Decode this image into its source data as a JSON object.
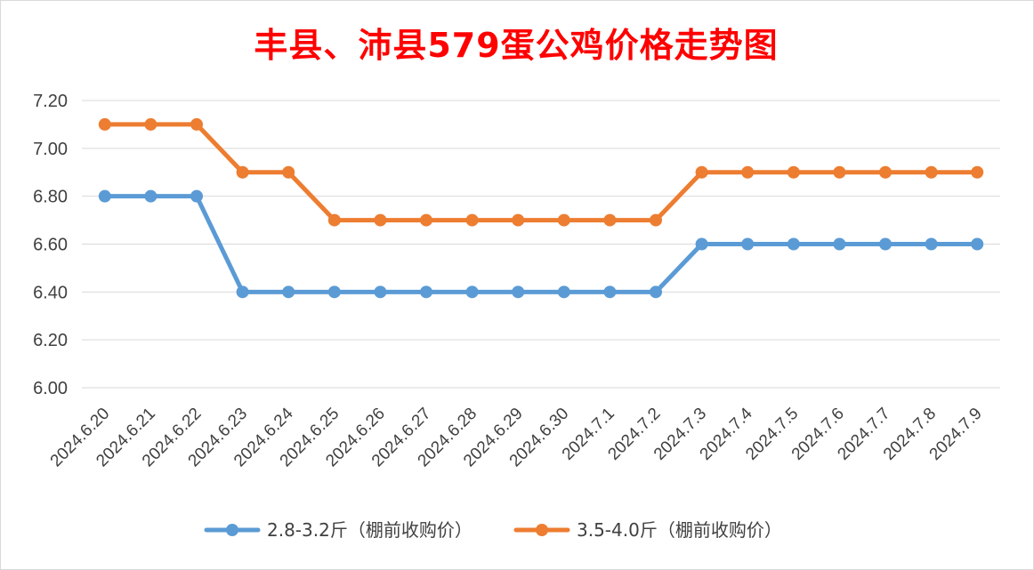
{
  "chart_data": {
    "type": "line",
    "title": "丰县、沛县579蛋公鸡价格走势图",
    "categories": [
      "2024.6.20",
      "2024.6.21",
      "2024.6.22",
      "2024.6.23",
      "2024.6.24",
      "2024.6.25",
      "2024.6.26",
      "2024.6.27",
      "2024.6.28",
      "2024.6.29",
      "2024.6.30",
      "2024.7.1",
      "2024.7.2",
      "2024.7.3",
      "2024.7.4",
      "2024.7.5",
      "2024.7.6",
      "2024.7.7",
      "2024.7.8",
      "2024.7.9"
    ],
    "series": [
      {
        "name": "2.8-3.2斤（棚前收购价）",
        "color": "#5b9bd5",
        "values": [
          6.8,
          6.8,
          6.8,
          6.4,
          6.4,
          6.4,
          6.4,
          6.4,
          6.4,
          6.4,
          6.4,
          6.4,
          6.4,
          6.6,
          6.6,
          6.6,
          6.6,
          6.6,
          6.6,
          6.6
        ]
      },
      {
        "name": "3.5-4.0斤（棚前收购价）",
        "color": "#ed7d31",
        "values": [
          7.1,
          7.1,
          7.1,
          6.9,
          6.9,
          6.7,
          6.7,
          6.7,
          6.7,
          6.7,
          6.7,
          6.7,
          6.7,
          6.9,
          6.9,
          6.9,
          6.9,
          6.9,
          6.9,
          6.9
        ]
      }
    ],
    "yticks": [
      "6.00",
      "6.20",
      "6.40",
      "6.60",
      "6.80",
      "7.00",
      "7.20"
    ],
    "ylim": [
      6.0,
      7.2
    ],
    "grid": true,
    "legend_position": "bottom",
    "title_color": "#ff0000",
    "gridline_color": "#d9d9d9"
  }
}
